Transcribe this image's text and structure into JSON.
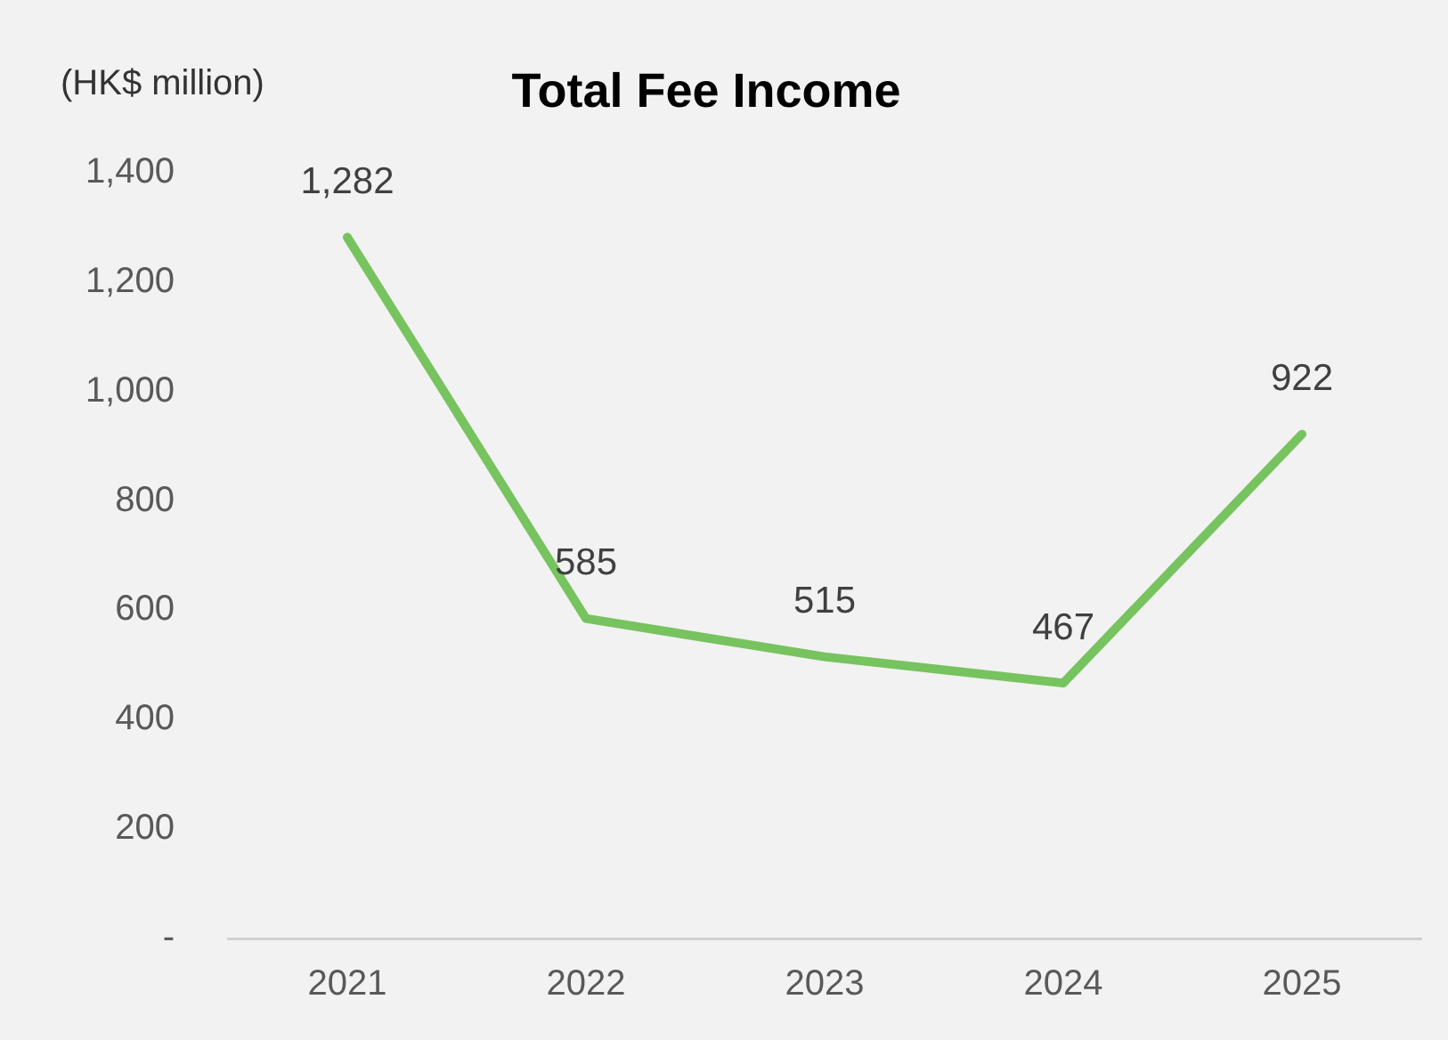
{
  "chart_data": {
    "type": "line",
    "title": "Total Fee Income",
    "ylabel": "(HK$ million)",
    "categories": [
      "2021",
      "2022",
      "2023",
      "2024",
      "2025"
    ],
    "series": [
      {
        "color": "#77c35f",
        "values": [
          1282,
          585,
          515,
          467,
          922
        ]
      }
    ],
    "value_labels": [
      "1,282",
      "585",
      "515",
      "467",
      "922"
    ],
    "ylim": [
      0,
      1400
    ],
    "yticks": [
      {
        "value": 0,
        "label": "-"
      },
      200,
      400,
      600,
      800,
      {
        "value": 1000,
        "label": "1,000"
      },
      {
        "value": 1200,
        "label": "1,200"
      },
      {
        "value": 1400,
        "label": "1,400"
      }
    ],
    "grid": false,
    "legend": false,
    "marker": "none",
    "line_style": "solid"
  }
}
